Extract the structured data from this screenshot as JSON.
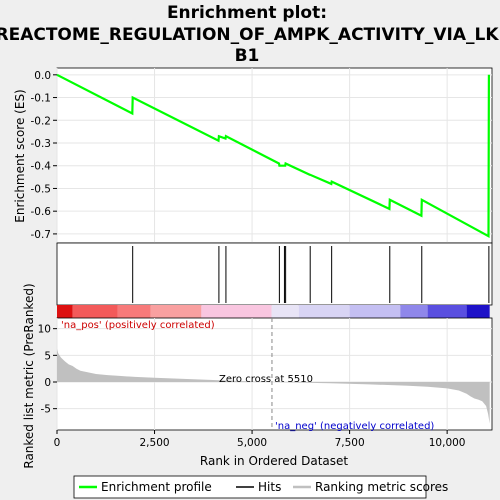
{
  "chart_data": {
    "type": "line",
    "title_lines": [
      "Enrichment plot:",
      "REACTOME_REGULATION_OF_AMPK_ACTIVITY_VIA_LK",
      "B1"
    ],
    "top_panel": {
      "ylabel": "Enrichment score (ES)",
      "ylim": [
        -0.74,
        0.03
      ],
      "yticks": [
        0.0,
        -0.1,
        -0.2,
        -0.3,
        -0.4,
        -0.5,
        -0.6,
        -0.7
      ],
      "ytick_labels": [
        "0.0",
        "-0.1",
        "-0.2",
        "-0.3",
        "-0.4",
        "-0.5",
        "-0.6",
        "-0.7"
      ],
      "series": [
        {
          "name": "Enrichment profile",
          "color": "#00ff00",
          "x": [
            0,
            1930,
            1940,
            4140,
            4150,
            4320,
            4330,
            5690,
            5700,
            5850,
            5860,
            6480,
            6490,
            7030,
            7040,
            8520,
            8530,
            9340,
            9350,
            11060,
            11070
          ],
          "y": [
            0.0,
            -0.17,
            -0.1,
            -0.29,
            -0.27,
            -0.28,
            -0.27,
            -0.39,
            -0.4,
            -0.4,
            -0.39,
            -0.44,
            -0.44,
            -0.48,
            -0.47,
            -0.59,
            -0.55,
            -0.62,
            -0.55,
            -0.71,
            0.0
          ]
        }
      ]
    },
    "hits": {
      "name": "Hits",
      "x": [
        1940,
        4150,
        4330,
        5700,
        5830,
        5860,
        6490,
        7040,
        8530,
        9350,
        11070
      ]
    },
    "ranking_panel": {
      "ylabel": "Ranked list metric (PreRanked)",
      "xlabel": "Rank in Ordered Dataset",
      "ylim": [
        -9,
        12
      ],
      "yticks": [
        10,
        5,
        0,
        -5
      ],
      "ytick_labels": [
        "10",
        "5",
        "0",
        "-5"
      ],
      "series_name": "Ranking metric scores",
      "fill_color": "#c0c0c0",
      "x": [
        0,
        30,
        100,
        200,
        300,
        400,
        500,
        600,
        800,
        1000,
        1300,
        1600,
        2000,
        2500,
        3000,
        3500,
        4000,
        4500,
        5000,
        5510,
        6000,
        7000,
        8000,
        9000,
        9500,
        10000,
        10300,
        10500,
        10600,
        10700,
        10800,
        10900,
        11000,
        11050,
        11090
      ],
      "y": [
        6.2,
        5.4,
        4.6,
        3.9,
        3.3,
        3.0,
        2.5,
        2.1,
        1.8,
        1.5,
        1.3,
        1.15,
        0.95,
        0.8,
        0.65,
        0.5,
        0.38,
        0.25,
        0.12,
        0.0,
        -0.1,
        -0.25,
        -0.45,
        -0.7,
        -0.9,
        -1.2,
        -1.6,
        -2.2,
        -2.7,
        -3.1,
        -3.3,
        -3.6,
        -4.5,
        -6.0,
        -7.8
      ]
    },
    "x_axis": {
      "xlim": [
        0,
        11150
      ],
      "xticks": [
        0,
        2500,
        5000,
        7500,
        10000
      ],
      "xtick_labels": [
        "0",
        "2,500",
        "5,000",
        "7,500",
        "10,000"
      ]
    },
    "zero_cross": {
      "x": 5510,
      "label": "Zero cross at 5510"
    },
    "labels": {
      "pos": "'na_pos' (positively correlated)",
      "neg": "'na_neg' (negatively correlated)",
      "pos_color": "#cc0000",
      "neg_color": "#0000cc"
    },
    "heat_bar": {
      "segments": [
        {
          "from": 0,
          "to": 400,
          "color": "#dd1111"
        },
        {
          "from": 400,
          "to": 1550,
          "color": "#f35a5a"
        },
        {
          "from": 1550,
          "to": 2400,
          "color": "#f77a7a"
        },
        {
          "from": 2400,
          "to": 3700,
          "color": "#f9a0a0"
        },
        {
          "from": 3700,
          "to": 5500,
          "color": "#f9c6e0"
        },
        {
          "from": 5500,
          "to": 6200,
          "color": "#e8e4f6"
        },
        {
          "from": 6200,
          "to": 7500,
          "color": "#d8d4f4"
        },
        {
          "from": 7500,
          "to": 8800,
          "color": "#c4bff2"
        },
        {
          "from": 8800,
          "to": 9500,
          "color": "#8f87ea"
        },
        {
          "from": 9500,
          "to": 10500,
          "color": "#5a4fe0"
        },
        {
          "from": 10500,
          "to": 11090,
          "color": "#1e12c8"
        }
      ]
    },
    "legend": {
      "items": [
        {
          "label": "Enrichment profile",
          "color": "#00ff00"
        },
        {
          "label": "Hits",
          "color": "#000000"
        },
        {
          "label": "Ranking metric scores",
          "color": "#c0c0c0"
        }
      ]
    }
  }
}
